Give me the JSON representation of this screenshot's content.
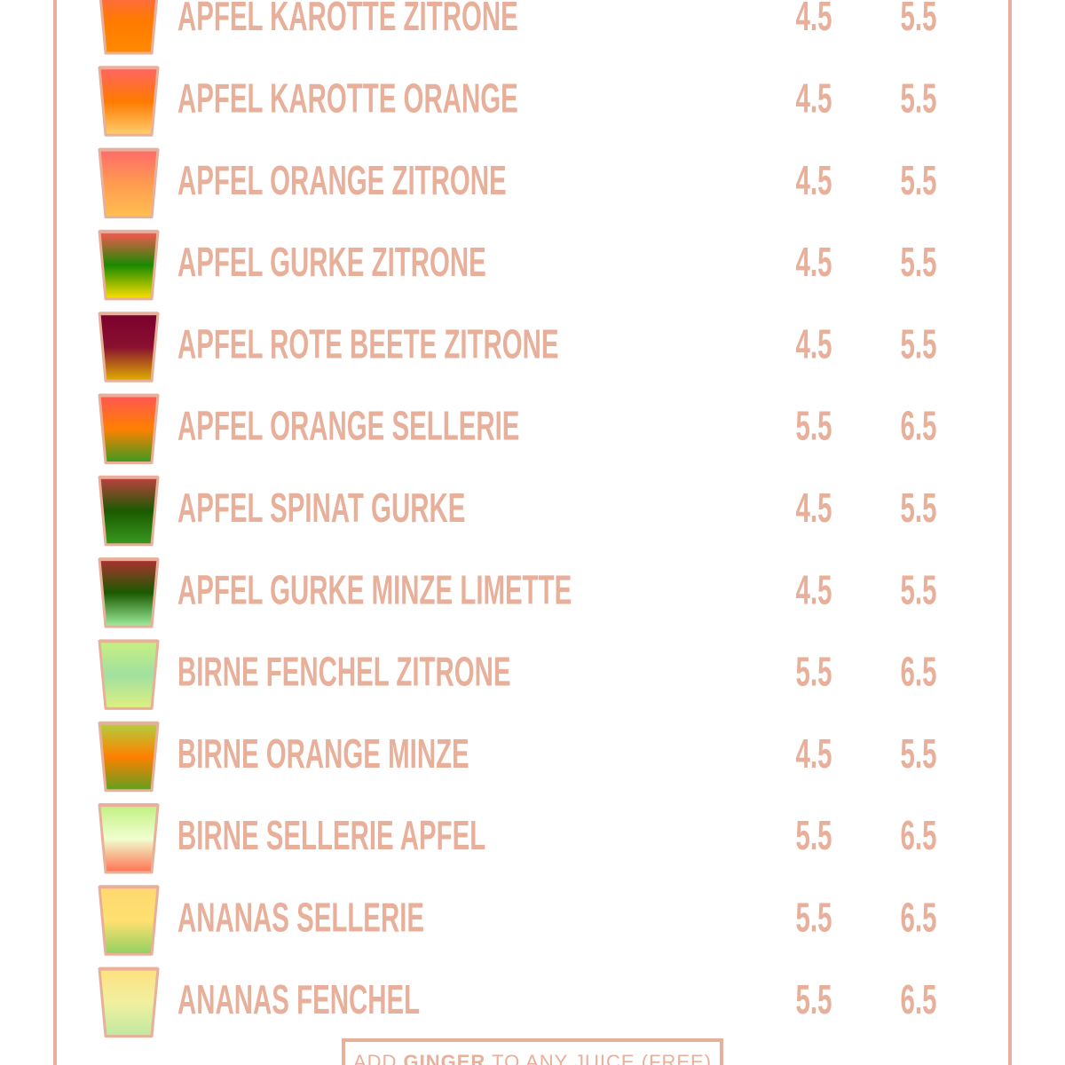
{
  "menu": {
    "items": [
      {
        "name": "APFEL KAROTTE ZITRONE",
        "small": "4.5",
        "large": "5.5"
      },
      {
        "name": "APFEL KAROTTE ORANGE",
        "small": "4.5",
        "large": "5.5"
      },
      {
        "name": "APFEL ORANGE ZITRONE",
        "small": "4.5",
        "large": "5.5"
      },
      {
        "name": "APFEL GURKE ZITRONE",
        "small": "4.5",
        "large": "5.5"
      },
      {
        "name": "APFEL ROTE BEETE ZITRONE",
        "small": "4.5",
        "large": "5.5"
      },
      {
        "name": "APFEL ORANGE SELLERIE",
        "small": "5.5",
        "large": "6.5"
      },
      {
        "name": "APFEL SPINAT GURKE",
        "small": "4.5",
        "large": "5.5"
      },
      {
        "name": "APFEL GURKE MINZE LIMETTE",
        "small": "4.5",
        "large": "5.5"
      },
      {
        "name": "BIRNE FENCHEL ZITRONE",
        "small": "5.5",
        "large": "6.5"
      },
      {
        "name": "BIRNE ORANGE MINZE",
        "small": "4.5",
        "large": "5.5"
      },
      {
        "name": "BIRNE SELLERIE APFEL",
        "small": "5.5",
        "large": "6.5"
      },
      {
        "name": "ANANAS SELLERIE",
        "small": "5.5",
        "large": "6.5"
      },
      {
        "name": "ANANAS FENCHEL",
        "small": "5.5",
        "large": "6.5"
      }
    ],
    "footer": {
      "pre": "ADD",
      "bold": "GINGER",
      "post": "TO ANY JUICE (FREE)"
    }
  }
}
